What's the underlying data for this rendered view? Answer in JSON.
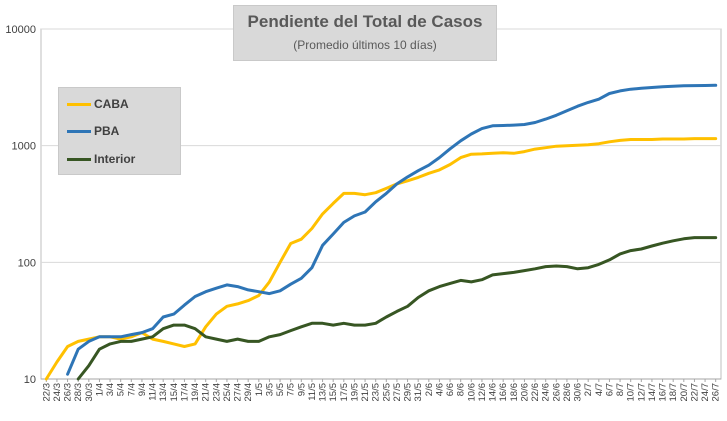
{
  "chart_data": {
    "type": "line",
    "title": "Pendiente del Total de Casos",
    "subtitle": "(Promedio últimos 10 días)",
    "yscale": "log",
    "ylim": [
      10,
      10000
    ],
    "yticks": [
      "10",
      "100",
      "1000",
      "10000"
    ],
    "grid": true,
    "legend_position": "left",
    "categories": [
      "22/3",
      "24/3",
      "26/3",
      "28/3",
      "30/3",
      "1/4",
      "3/4",
      "5/4",
      "7/4",
      "9/4",
      "11/4",
      "13/4",
      "15/4",
      "17/4",
      "19/4",
      "21/4",
      "23/4",
      "25/4",
      "27/4",
      "29/4",
      "1/5",
      "3/5",
      "5/5",
      "7/5",
      "9/5",
      "11/5",
      "13/5",
      "15/5",
      "17/5",
      "19/5",
      "21/5",
      "23/5",
      "25/5",
      "27/5",
      "29/5",
      "31/5",
      "2/6",
      "4/6",
      "6/6",
      "8/6",
      "10/6",
      "12/6",
      "14/6",
      "16/6",
      "18/6",
      "20/6",
      "22/6",
      "24/6",
      "26/6",
      "28/6",
      "30/6",
      "2/7",
      "4/7",
      "6/7",
      "8/7",
      "10/7",
      "12/7",
      "14/7",
      "16/7",
      "18/7",
      "20/7",
      "22/7",
      "24/7",
      "26/7"
    ],
    "series": [
      {
        "name": "CABA",
        "color": "#ffc000",
        "values": [
          10,
          14,
          19,
          21,
          22,
          23,
          23,
          22,
          23,
          25,
          22,
          21,
          20,
          19,
          20,
          28,
          36,
          42,
          44,
          47,
          52,
          68,
          100,
          145,
          158,
          195,
          260,
          320,
          390,
          390,
          380,
          395,
          430,
          470,
          500,
          535,
          580,
          620,
          690,
          790,
          845,
          850,
          860,
          870,
          860,
          890,
          935,
          960,
          990,
          1000,
          1010,
          1020,
          1040,
          1080,
          1110,
          1130,
          1130,
          1130,
          1140,
          1140,
          1140,
          1150,
          1150,
          1150
        ]
      },
      {
        "name": "PBA",
        "color": "#2e75b6",
        "values": [
          null,
          null,
          11,
          18,
          21,
          23,
          23,
          23,
          24,
          25,
          27,
          34,
          36,
          43,
          51,
          56,
          60,
          64,
          62,
          58,
          56,
          54,
          57,
          65,
          73,
          90,
          140,
          175,
          220,
          250,
          270,
          330,
          390,
          470,
          540,
          610,
          680,
          790,
          940,
          1100,
          1260,
          1400,
          1480,
          1490,
          1500,
          1520,
          1580,
          1690,
          1820,
          1990,
          2180,
          2350,
          2500,
          2800,
          2950,
          3050,
          3100,
          3150,
          3200,
          3230,
          3260,
          3270,
          3280,
          3290
        ]
      },
      {
        "name": "Interior",
        "color": "#375623",
        "values": [
          null,
          null,
          null,
          10,
          13,
          18,
          20,
          21,
          21,
          22,
          23,
          27,
          29,
          29,
          27,
          23,
          22,
          21,
          22,
          21,
          21,
          23,
          24,
          26,
          28,
          30,
          30,
          29,
          30,
          29,
          29,
          30,
          34,
          38,
          42,
          50,
          57,
          62,
          66,
          70,
          68,
          71,
          78,
          80,
          82,
          85,
          88,
          92,
          93,
          92,
          88,
          90,
          96,
          105,
          118,
          126,
          130,
          138,
          146,
          153,
          159,
          163,
          163,
          163
        ]
      }
    ]
  }
}
